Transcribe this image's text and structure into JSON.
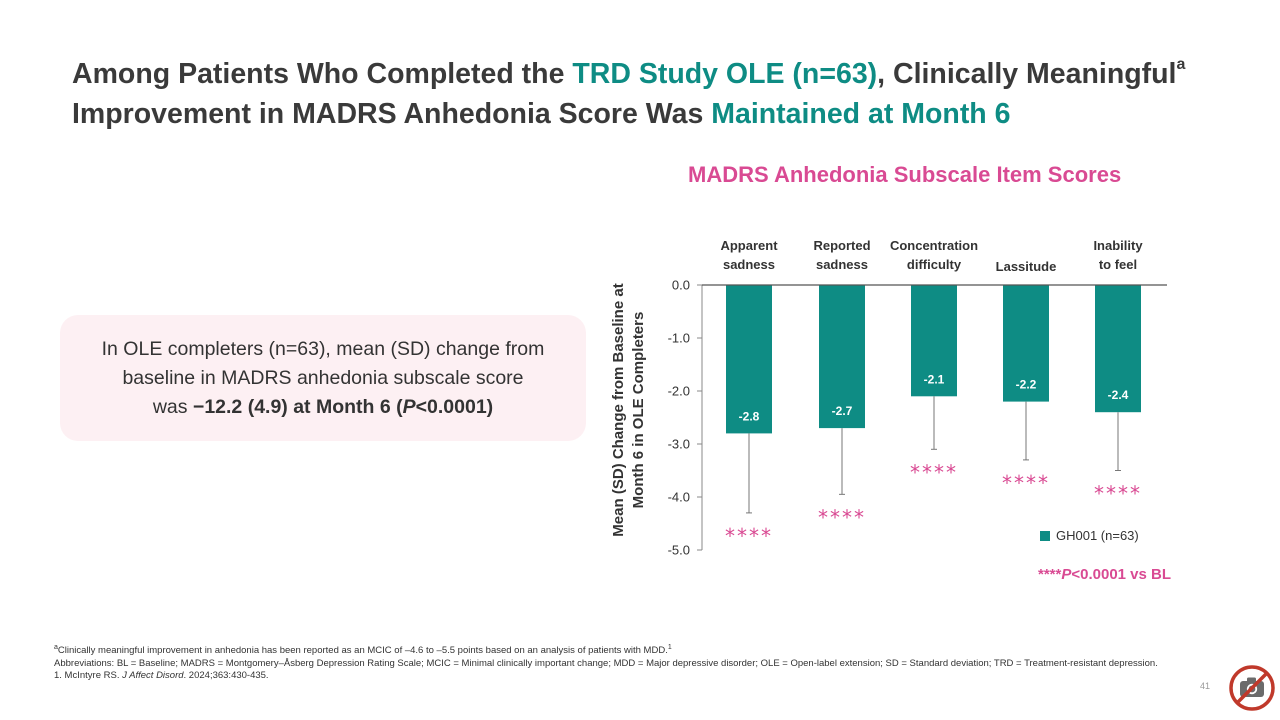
{
  "title": {
    "part1": "Among Patients Who Completed the ",
    "highlight1": "TRD Study OLE (n=63)",
    "part2": ", Clinically Meaningful",
    "superscript": "a",
    "part3": "Improvement in MADRS Anhedonia Score Was ",
    "highlight2": "Maintained at Month 6"
  },
  "callout": {
    "line1": "In OLE completers (n=63), mean (SD) change from",
    "line2": "baseline in MADRS anhedonia subscale score",
    "line3_prefix": "was ",
    "line3_bold": "−12.2 (4.9) at Month 6 (",
    "line3_italic": "P",
    "line3_bold_end": "<0.0001)"
  },
  "chart_data": {
    "type": "bar",
    "title": "MADRS Anhedonia Subscale Item Scores",
    "ylabel_line1": "Mean (SD) Change from Baseline at",
    "ylabel_line2": "Month 6 in OLE Completers",
    "ylim": [
      -5.0,
      0.0
    ],
    "yticks": [
      "0.0",
      "-1.0",
      "-2.0",
      "-3.0",
      "-4.0",
      "-5.0"
    ],
    "categories": [
      [
        "Apparent",
        "sadness"
      ],
      [
        "Reported",
        "sadness"
      ],
      [
        "Concentration",
        "difficulty"
      ],
      [
        "Lassitude"
      ],
      [
        "Inability",
        "to feel"
      ]
    ],
    "series": [
      {
        "name": "GH001 (n=63)",
        "values": [
          -2.8,
          -2.7,
          -2.1,
          -2.2,
          -2.4
        ],
        "sd": [
          1.5,
          1.25,
          1.0,
          1.1,
          1.1
        ]
      }
    ],
    "value_labels": [
      "-2.8",
      "-2.7",
      "-2.1",
      "-2.2",
      "-2.4"
    ],
    "significance": [
      "****",
      "****",
      "****",
      "****",
      "****"
    ],
    "bar_color": "#0e8c84",
    "star_color": "#d94a93"
  },
  "legend_label": "GH001 (n=63)",
  "p_note": {
    "stars": "****",
    "p": "P",
    "rest": "<0.0001 vs BL"
  },
  "footnotes": {
    "a_mark": "a",
    "a_text": "Clinically meaningful improvement in anhedonia has been reported as an MCIC of –4.6 to –5.5 points based on an analysis of patients with MDD.",
    "a_ref": "1",
    "abbreviations": "Abbreviations: BL = Baseline; MADRS = Montgomery–Åsberg Depression Rating Scale; MCIC = Minimal clinically important change; MDD = Major depressive disorder; OLE = Open-label extension; SD = Standard deviation; TRD = Treatment-resistant depression.",
    "ref1_prefix": "1. McIntyre RS. ",
    "ref1_journal": "J Affect Disord",
    "ref1_suffix": ". 2024;363:430-435."
  },
  "page_number": "41",
  "colors": {
    "teal": "#0e8c84",
    "pink": "#d94a93",
    "callout_bg": "#fdf0f3"
  },
  "icons": {
    "no_photo": "no-photography-icon"
  }
}
